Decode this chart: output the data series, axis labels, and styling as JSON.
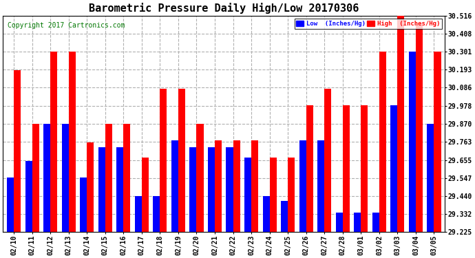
{
  "title": "Barometric Pressure Daily High/Low 20170306",
  "copyright": "Copyright 2017 Cartronics.com",
  "categories": [
    "02/10",
    "02/11",
    "02/12",
    "02/13",
    "02/14",
    "02/15",
    "02/16",
    "02/17",
    "02/18",
    "02/19",
    "02/20",
    "02/21",
    "02/22",
    "02/23",
    "02/24",
    "02/25",
    "02/26",
    "02/27",
    "02/28",
    "03/01",
    "03/02",
    "03/03",
    "03/04",
    "03/05"
  ],
  "low_values": [
    29.55,
    29.65,
    29.87,
    29.87,
    29.55,
    29.73,
    29.73,
    29.44,
    29.44,
    29.77,
    29.73,
    29.73,
    29.73,
    29.67,
    29.44,
    29.41,
    29.77,
    29.77,
    29.34,
    29.34,
    29.34,
    29.98,
    30.3,
    29.87
  ],
  "high_values": [
    30.19,
    29.87,
    30.3,
    30.3,
    29.76,
    29.87,
    29.87,
    29.67,
    30.08,
    30.08,
    29.87,
    29.77,
    29.77,
    29.77,
    29.67,
    29.67,
    29.98,
    30.08,
    29.98,
    29.98,
    30.3,
    30.52,
    30.46,
    30.3
  ],
  "low_color": "#0000ff",
  "high_color": "#ff0000",
  "bg_color": "#ffffff",
  "grid_color": "#b0b0b0",
  "ylim_min": 29.225,
  "ylim_max": 30.516,
  "yticks": [
    29.225,
    29.332,
    29.44,
    29.547,
    29.655,
    29.763,
    29.87,
    29.978,
    30.086,
    30.193,
    30.301,
    30.408,
    30.516
  ],
  "legend_low_label": "Low  (Inches/Hg)",
  "legend_high_label": "High  (Inches/Hg)",
  "title_fontsize": 11,
  "tick_fontsize": 7,
  "copyright_fontsize": 7,
  "bar_width": 0.38,
  "figwidth": 6.9,
  "figheight": 3.75,
  "dpi": 100
}
